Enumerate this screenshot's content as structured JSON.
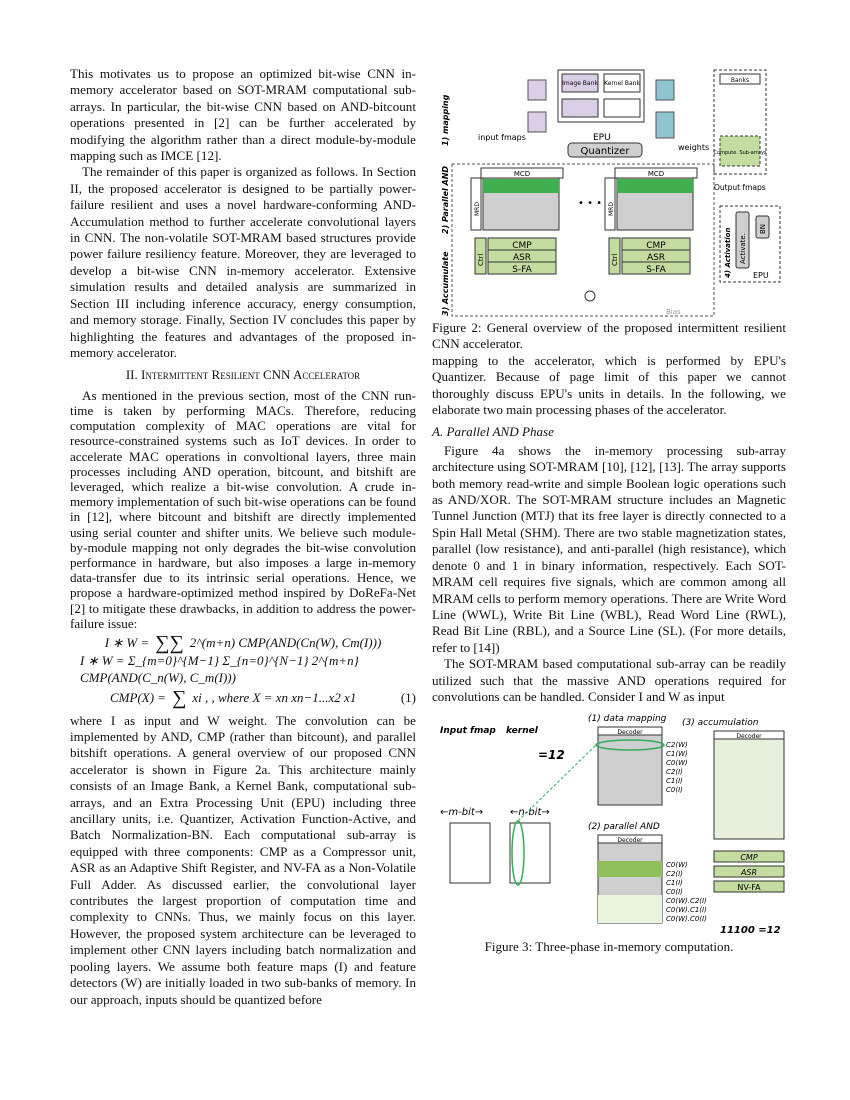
{
  "left": {
    "p1": "This motivates us to propose an optimized bit-wise CNN in-memory accelerator based on SOT-MRAM computational sub-arrays. In particular, the bit-wise CNN based on AND-bitcount operations presented in [2] can be further accelerated by modifying the algorithm rather than a direct module-by-module mapping such as IMCE [12].",
    "p2": "The remainder of this paper is organized as follows. In Section II, the proposed accelerator is designed to be partially power-failure resilient and uses a novel hardware-conforming AND-Accumulation method to further accelerate convolutional layers in CNN. The non-volatile SOT-MRAM based structures provide power failure resiliency feature. Moreover, they are leveraged to develop a bit-wise CNN in-memory accelerator. Extensive simulation results and detailed analysis are summarized in Section III including inference accuracy, energy consumption, and memory storage. Finally, Section IV concludes this paper by highlighting the features and advantages of the proposed in-memory accelerator.",
    "section_heading": "II. Intermittent Resilient CNN Accelerator",
    "p3": "As mentioned in the previous section, most of the CNN run-time is taken by performing MACs. Therefore, reducing computation complexity of MAC operations are vital for resource-constrained systems such as IoT devices. In order to accelerate MAC operations in convoltional layers, three main processes including AND operation, bitcount, and bitshift are leveraged, which realize a bit-wise convolution. A crude in-memory implementation of such bit-wise operations can be found in [12], where bitcount and bitshift are directly implemented using serial counter and shifter units. We believe such module-by-module mapping not only degrades the bit-wise convolution performance in hardware, but also imposes a large in-memory data-transfer due to its intrinsic serial operations. Hence, we propose a hardware-optimized method inspired by DoReFa-Net [2] to mitigate these drawbacks, in addition to address the power-failure issue:",
    "eq1": "I ∗ W = Σ_{m=0}^{M−1} Σ_{n=0}^{N−1} 2^{m+n} CMP(AND(C_n(W), C_m(I)))",
    "eq1_lhs": "I ∗ W =",
    "eq1_rhs": "2^(m+n) CMP(AND(Cn(W), Cm(I)))",
    "eq2_lhs": "CMP(X) =",
    "eq2_rhs": "xi ,  , where X = xn xn−1...x2 x1",
    "eq_num": "(1)",
    "p4": "where I as input and W weight. The convolution can be implemented by AND, CMP (rather than bitcount), and parallel bitshift operations. A general overview of our proposed CNN accelerator is shown in Figure 2a. This architecture mainly consists of an Image Bank, a Kernel Bank, computational sub-arrays, and an Extra Processing Unit (EPU) including three ancillary units, i.e. Quantizer, Activation Function-Active, and Batch Normalization-BN. Each computational sub-array is equipped with three components: CMP as a Compressor unit, ASR as an Adaptive Shift Register, and NV-FA as a Non-Volatile Full Adder. As discussed earlier, the convolutional layer contributes the largest proportion of computation time and complexity to CNNs. Thus, we mainly focus on this layer. However, the proposed system architecture can be leveraged to implement other CNN layers including batch normalization and pooling layers. We assume both feature maps (I) and feature detectors (W) are initially loaded in two sub-banks of memory. In our approach, inputs should be quantized before"
  },
  "right": {
    "fig2_caption": "Figure 2: General overview of the proposed intermittent resilient CNN accelerator.",
    "p1": "mapping to the accelerator, which is performed by EPU's Quantizer. Because of page limit of this paper we cannot thoroughly discuss EPU's units in details. In the following, we elaborate two main processing phases of the accelerator.",
    "subsection": "A. Parallel AND Phase",
    "p2": "Figure 4a shows the in-memory processing sub-array architecture using SOT-MRAM [10], [12], [13]. The array supports both memory read-write and simple Boolean logic operations such as AND/XOR. The SOT-MRAM structure includes an Magnetic Tunnel Junction (MTJ) that its free layer is directly connected to a Spin Hall Metal (SHM). There are two stable magnetization states, parallel (low resistance), and anti-parallel (high resistance), which denote 0 and 1 in binary information, respectively. Each SOT-MRAM cell requires five signals, which are common among all MRAM cells to perform memory operations. There are Write Word Line (WWL), Write Bit Line (WBL), Read Word Line (RWL), Read Bit Line (RBL), and a Source Line (SL). (For more details, refer to [14])",
    "p3": "The SOT-MRAM based computational sub-array can be readily utilized such that the massive AND operations required for convolutions can be handled. Consider I and W as input",
    "fig3_caption": "Figure 3: Three-phase in-memory computation."
  },
  "fig2": {
    "mapping": "1) mapping",
    "parallel_and": "2) Parallel AND",
    "accumulate": "3) Accumulate",
    "activation": "4) Activation",
    "image_bank": "Image Bank",
    "kernel_bank": "Kernel Bank",
    "epu": "EPU",
    "quantizer": "Quantizer",
    "input_fmaps": "input fmaps",
    "weights": "weights",
    "mcd": "MCD",
    "mrd": "MRD",
    "ctrl": "Ctrl",
    "cmp": "CMP",
    "asr": "ASR",
    "sfa": "S-FA",
    "bias": "Bias",
    "banks": "Banks",
    "activate": "Activate.",
    "bn": "BN",
    "compute": "Compute. Sub-arrays",
    "output_fmaps": "Output fmaps",
    "dots": "• • •"
  },
  "fig3": {
    "input_fmap": "Input fmap",
    "kernel": "kernel",
    "eq12": "=12",
    "mbit": "←m-bit→",
    "nbit": "←n-bit→",
    "data_mapping": "(1) data mapping",
    "parallel_and": "(2) parallel AND",
    "accumulation": "(3) accumulation",
    "decoder": "Decoder",
    "cmp": "CMP",
    "asr": "ASR",
    "nvfa": "NV-FA",
    "result": "11100 =12",
    "labels1": [
      "C2(W)",
      "C1(W)",
      "C0(W)",
      "C2(I)",
      "C1(I)",
      "C0(I)"
    ],
    "labels2": [
      "C0(W)",
      "C2(I)",
      "C1(I)",
      "C0(I)",
      "C0(W).C2(I)",
      "C0(W).C1(I)",
      "C0(W).C0(I)"
    ],
    "colors": {
      "green": "#c5dca0",
      "purple": "#d9cfe6",
      "teal": "#5aa6b8",
      "gray": "#cfcfcf"
    }
  }
}
